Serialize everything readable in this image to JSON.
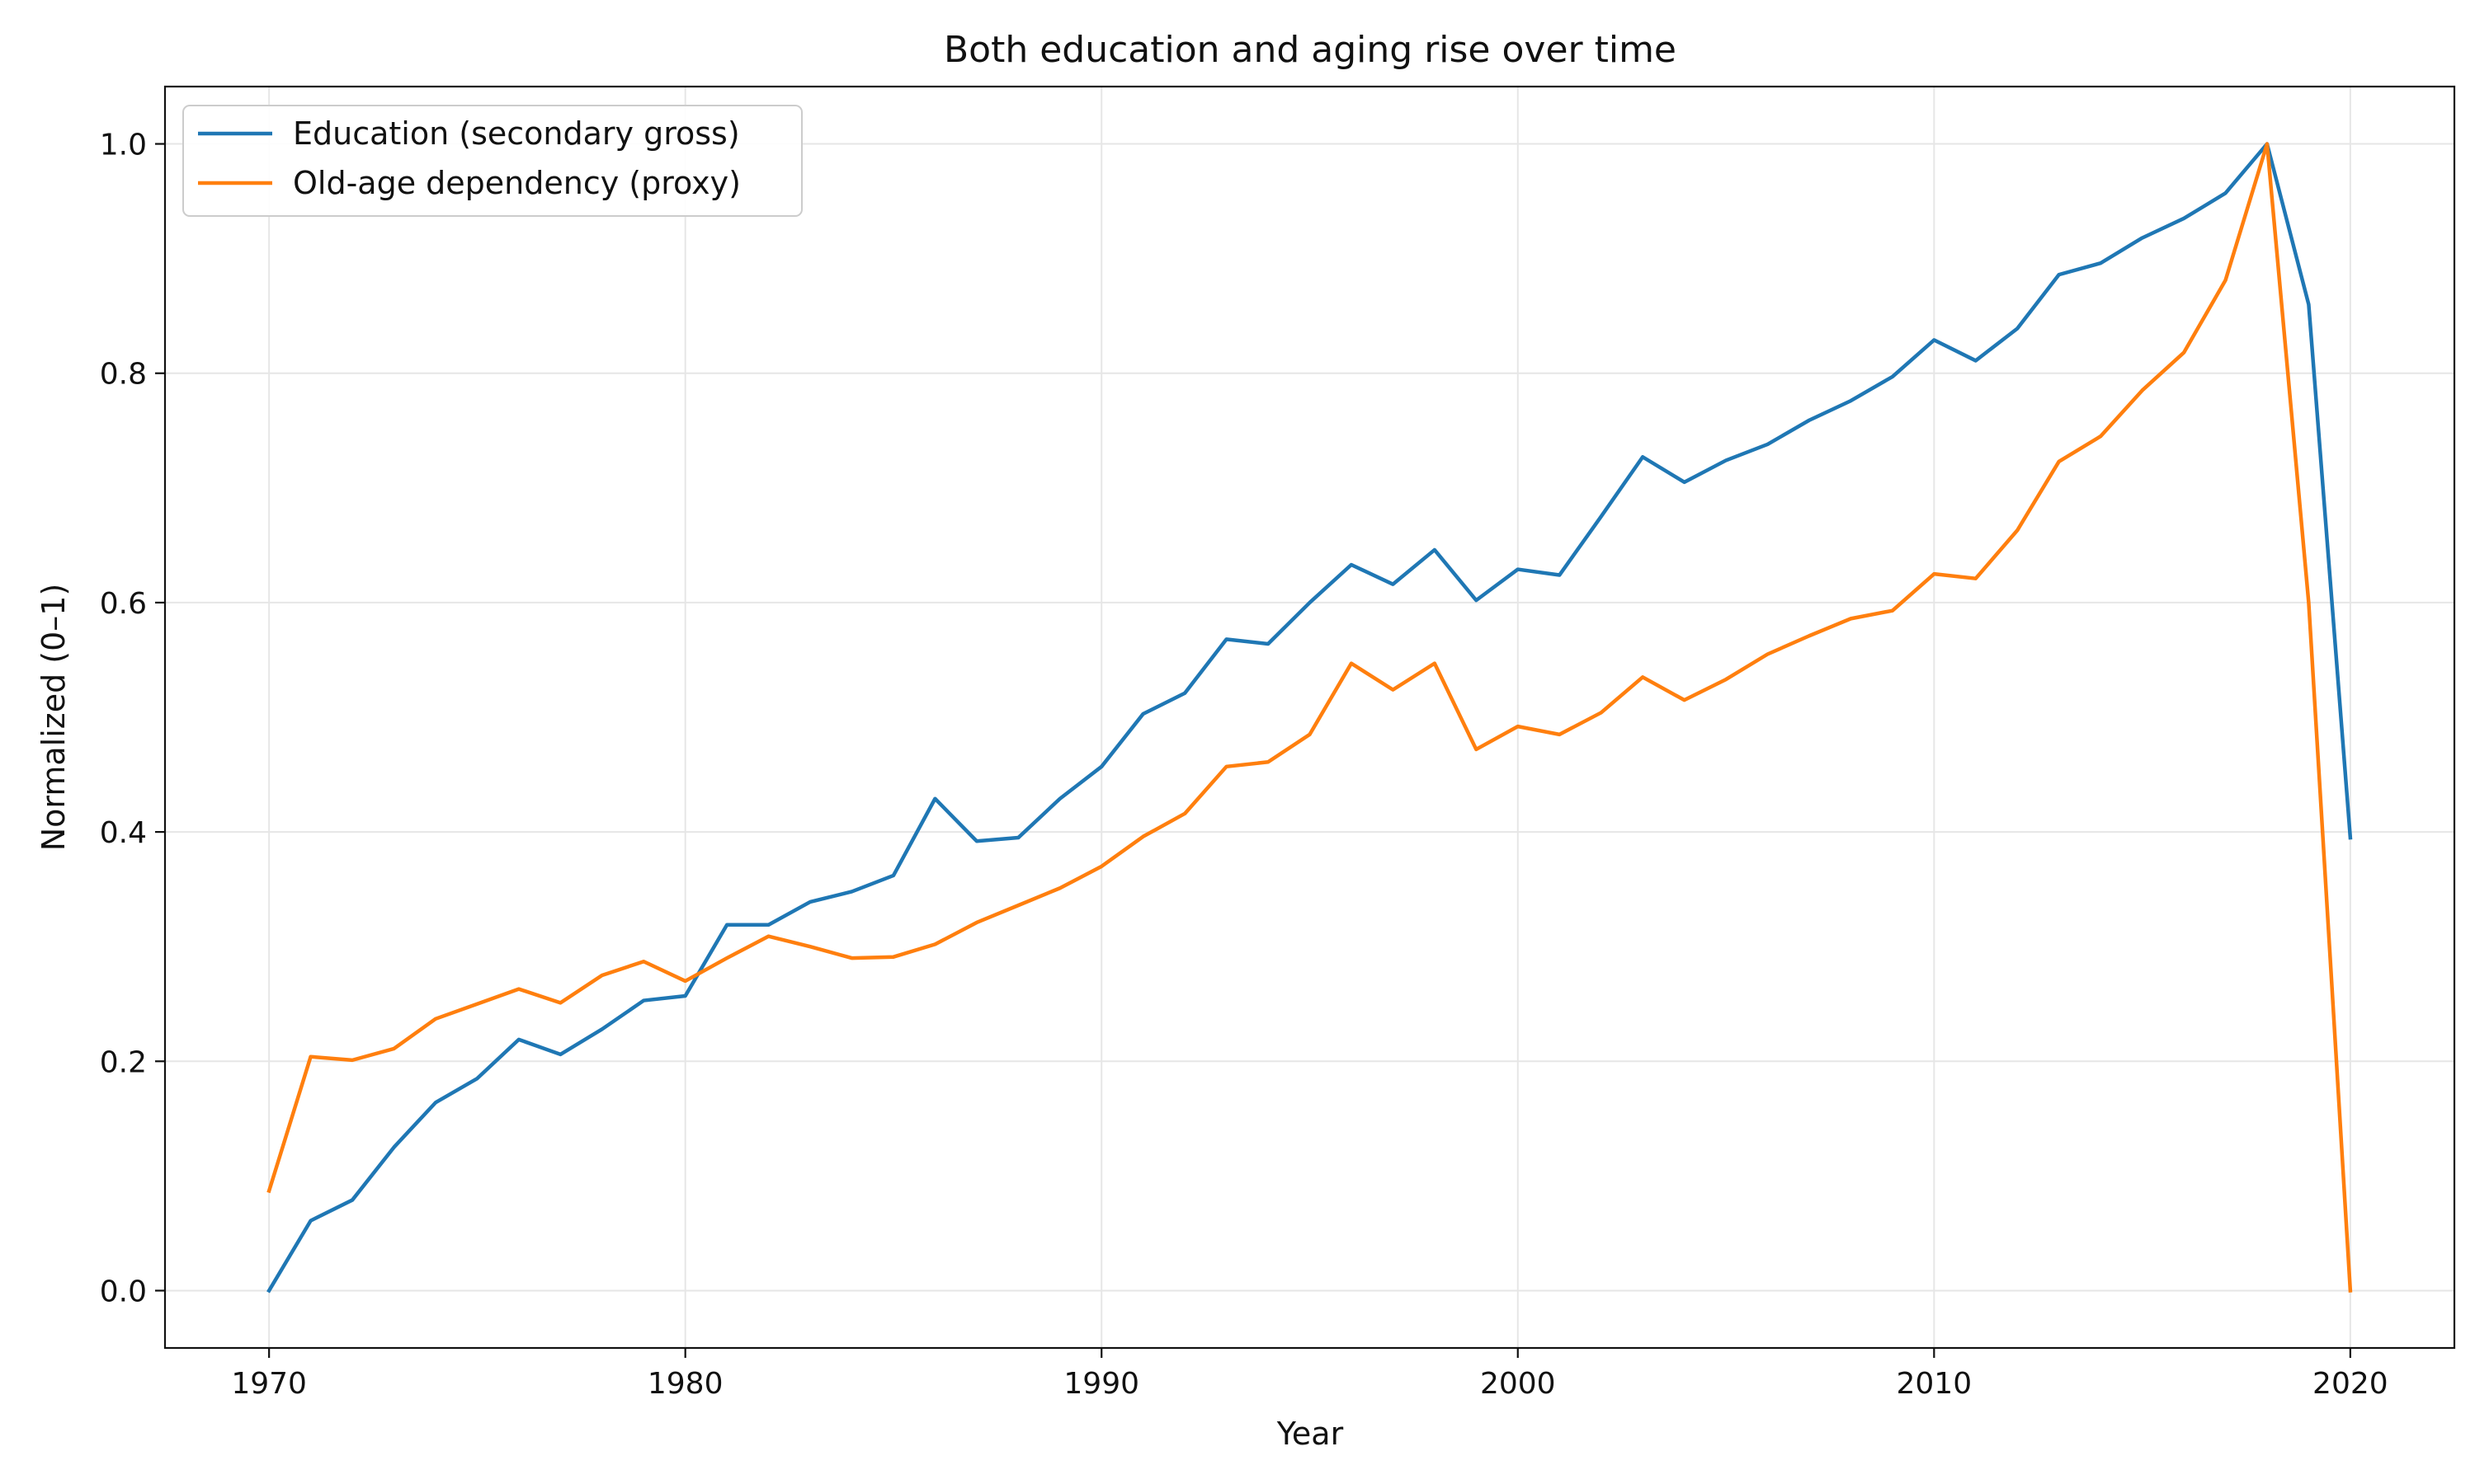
{
  "chart_data": {
    "type": "line",
    "title": "Both education and aging rise over time",
    "xlabel": "Year",
    "ylabel": "Normalized (0–1)",
    "xlim": [
      1967.5,
      2022.5
    ],
    "ylim": [
      -0.05,
      1.05
    ],
    "xticks": [
      1970,
      1980,
      1990,
      2000,
      2010,
      2020
    ],
    "yticks": [
      0.0,
      0.2,
      0.4,
      0.6,
      0.8,
      1.0
    ],
    "xtick_labels": [
      "1970",
      "1980",
      "1990",
      "2000",
      "2010",
      "2020"
    ],
    "ytick_labels": [
      "0.0",
      "0.2",
      "0.4",
      "0.6",
      "0.8",
      "1.0"
    ],
    "grid": true,
    "legend_position": "top-left",
    "x": [
      1970,
      1971,
      1972,
      1973,
      1974,
      1975,
      1976,
      1977,
      1978,
      1979,
      1980,
      1981,
      1982,
      1983,
      1984,
      1985,
      1986,
      1987,
      1988,
      1989,
      1990,
      1991,
      1992,
      1993,
      1994,
      1995,
      1996,
      1997,
      1998,
      1999,
      2000,
      2001,
      2002,
      2003,
      2004,
      2005,
      2006,
      2007,
      2008,
      2009,
      2010,
      2011,
      2012,
      2013,
      2014,
      2015,
      2016,
      2017,
      2018,
      2019,
      2020
    ],
    "series": [
      {
        "name": "Education (secondary gross)",
        "color": "#1f77b4",
        "values": [
          0.0,
          0.061,
          0.079,
          0.125,
          0.164,
          0.185,
          0.219,
          0.206,
          0.228,
          0.253,
          0.257,
          0.319,
          0.319,
          0.339,
          0.348,
          0.362,
          0.429,
          0.392,
          0.395,
          0.429,
          0.457,
          0.503,
          0.521,
          0.568,
          0.564,
          0.6,
          0.633,
          0.616,
          0.646,
          0.602,
          0.629,
          0.624,
          0.675,
          0.727,
          0.705,
          0.724,
          0.738,
          0.759,
          0.776,
          0.797,
          0.829,
          0.811,
          0.839,
          0.886,
          0.896,
          0.918,
          0.935,
          0.957,
          1.0,
          0.86,
          0.395
        ]
      },
      {
        "name": "Old-age dependency (proxy)",
        "color": "#ff7f0e",
        "values": [
          0.087,
          0.204,
          0.201,
          0.211,
          0.237,
          0.25,
          0.263,
          0.251,
          0.275,
          0.287,
          0.27,
          0.29,
          0.309,
          0.3,
          0.29,
          0.291,
          0.302,
          0.321,
          0.336,
          0.351,
          0.37,
          0.396,
          0.416,
          0.457,
          0.461,
          0.485,
          0.547,
          0.524,
          0.547,
          0.472,
          0.492,
          0.485,
          0.504,
          0.535,
          0.515,
          0.533,
          0.555,
          0.571,
          0.586,
          0.593,
          0.625,
          0.621,
          0.663,
          0.723,
          0.745,
          0.785,
          0.818,
          0.881,
          1.0,
          0.6,
          0.0
        ]
      }
    ]
  }
}
